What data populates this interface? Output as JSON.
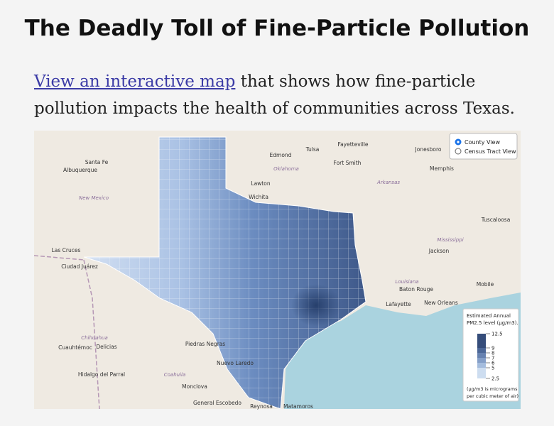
{
  "header": {
    "title": "The Deadly Toll of Fine-Particle Pollution"
  },
  "intro": {
    "link": "View an interactive map",
    "text": "that shows how fine-particle pollution impacts the health of communities across Texas."
  },
  "map": {
    "controls": [
      "County View",
      "Census Tract View"
    ],
    "places": [
      "Santa Fe",
      "Albuquerque",
      "New Mexico",
      "Edmond",
      "Tulsa",
      "Oklahoma",
      "Fort Smith",
      "Fayetteville",
      "Jonesboro",
      "Memphis",
      "Lawton",
      "Wichita",
      "Arkansas",
      "Tuscaloosa",
      "Mississippi",
      "Las Cruces",
      "Ciudad Juárez",
      "Jackson",
      "Louisiana",
      "Baton Rouge",
      "Lafayette",
      "New Orleans",
      "Mobile",
      "Chihuahua",
      "Cuauhtémoc",
      "Delicias",
      "Piedras Negras",
      "Nuevo Laredo",
      "Hidalgo del Parral",
      "Coahuila",
      "Monclova",
      "General Escobedo",
      "Reynosa",
      "Matamoros"
    ],
    "legend": {
      "title": [
        "Estimated Annual",
        "PM2.5 level (µg/m3)."
      ],
      "ticks": [
        12.5,
        9,
        8,
        7,
        6,
        5,
        2.5
      ],
      "note": [
        "(µg/m3 is micrograms",
        "per cubic meter of air)"
      ]
    }
  }
}
